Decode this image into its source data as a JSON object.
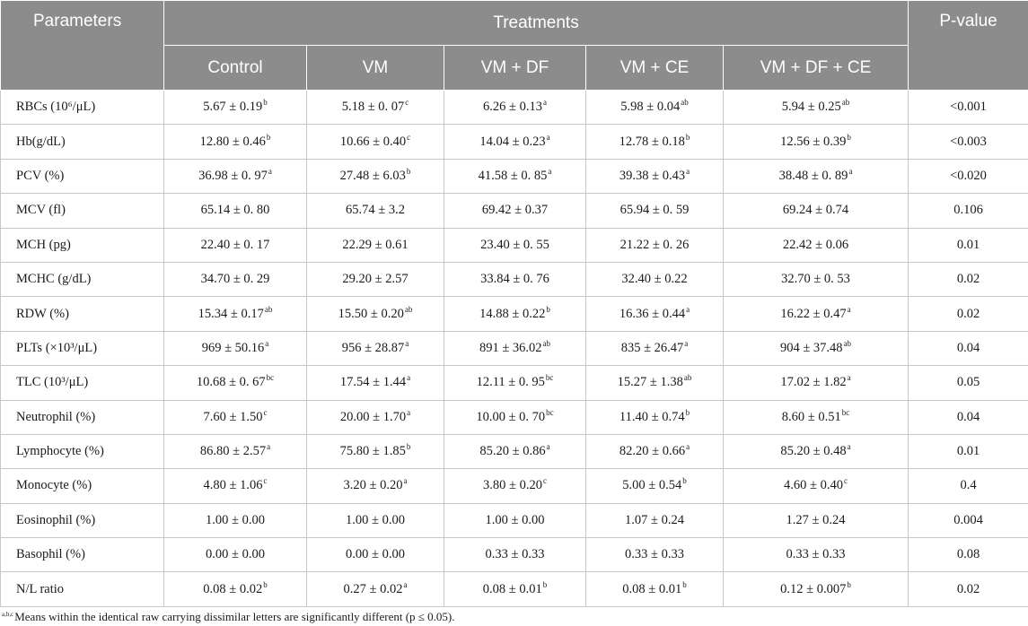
{
  "header": {
    "parameters": "Parameters",
    "treatments": "Treatments",
    "pvalue": "P-value",
    "groups": [
      "Control",
      "VM",
      "VM + DF",
      "VM + CE",
      "VM + DF + CE"
    ]
  },
  "rows": [
    {
      "p": "RBCs (10⁶/μL)",
      "c": [
        [
          "5.67 ± 0.19",
          "b"
        ],
        [
          "5.18 ± 0. 07",
          "c"
        ],
        [
          "6.26 ± 0.13",
          "a"
        ],
        [
          "5.98 ± 0.04",
          "ab"
        ],
        [
          "5.94 ± 0.25",
          "ab"
        ]
      ],
      "pv": "<0.001"
    },
    {
      "p": "Hb(g/dL)",
      "c": [
        [
          "12.80 ± 0.46",
          "b"
        ],
        [
          "10.66 ± 0.40",
          "c"
        ],
        [
          "14.04 ± 0.23",
          "a"
        ],
        [
          "12.78 ± 0.18",
          "b"
        ],
        [
          "12.56 ± 0.39",
          "b"
        ]
      ],
      "pv": "<0.003"
    },
    {
      "p": "PCV (%)",
      "c": [
        [
          "36.98 ± 0. 97",
          "a"
        ],
        [
          "27.48 ± 6.03",
          "b"
        ],
        [
          "41.58 ± 0. 85",
          "a"
        ],
        [
          "39.38 ± 0.43",
          "a"
        ],
        [
          "38.48 ± 0. 89",
          "a"
        ]
      ],
      "pv": "<0.020"
    },
    {
      "p": "MCV (fl)",
      "c": [
        [
          "65.14 ± 0. 80",
          ""
        ],
        [
          "65.74 ± 3.2",
          ""
        ],
        [
          "69.42 ± 0.37",
          ""
        ],
        [
          "65.94 ± 0. 59",
          ""
        ],
        [
          "69.24 ± 0.74",
          ""
        ]
      ],
      "pv": "0.106"
    },
    {
      "p": "MCH (pg)",
      "c": [
        [
          "22.40 ± 0. 17",
          ""
        ],
        [
          "22.29 ± 0.61",
          ""
        ],
        [
          "23.40 ± 0. 55",
          ""
        ],
        [
          "21.22 ± 0. 26",
          ""
        ],
        [
          "22.42 ± 0.06",
          ""
        ]
      ],
      "pv": "0.01"
    },
    {
      "p": "MCHC (g/dL)",
      "c": [
        [
          "34.70 ± 0. 29",
          ""
        ],
        [
          "29.20 ± 2.57",
          ""
        ],
        [
          "33.84 ± 0. 76",
          ""
        ],
        [
          "32.40 ± 0.22",
          ""
        ],
        [
          "32.70 ± 0. 53",
          ""
        ]
      ],
      "pv": "0.02"
    },
    {
      "p": "RDW (%)",
      "c": [
        [
          "15.34 ± 0.17",
          "ab"
        ],
        [
          "15.50 ± 0.20",
          "ab"
        ],
        [
          "14.88 ± 0.22",
          "b"
        ],
        [
          "16.36 ± 0.44",
          "a"
        ],
        [
          "16.22 ± 0.47",
          "a"
        ]
      ],
      "pv": "0.02"
    },
    {
      "p": "PLTs (×10³/μL)",
      "c": [
        [
          "969 ± 50.16",
          "a"
        ],
        [
          "956 ± 28.87",
          "a"
        ],
        [
          "891 ± 36.02",
          "ab"
        ],
        [
          "835 ± 26.47",
          "a"
        ],
        [
          "904 ± 37.48",
          "ab"
        ]
      ],
      "pv": "0.04"
    },
    {
      "p": "TLC (10³/μL)",
      "c": [
        [
          "10.68 ± 0. 67",
          "bc"
        ],
        [
          "17.54 ± 1.44",
          "a"
        ],
        [
          "12.11 ± 0. 95",
          "bc"
        ],
        [
          "15.27 ± 1.38",
          "ab"
        ],
        [
          "17.02 ± 1.82",
          "a"
        ]
      ],
      "pv": "0.05"
    },
    {
      "p": "Neutrophil (%)",
      "c": [
        [
          "7.60 ± 1.50",
          "c"
        ],
        [
          "20.00 ± 1.70",
          "a"
        ],
        [
          "10.00 ± 0. 70",
          "bc"
        ],
        [
          "11.40 ± 0.74",
          "b"
        ],
        [
          "8.60 ± 0.51",
          "bc"
        ]
      ],
      "pv": "0.04"
    },
    {
      "p": "Lymphocyte (%)",
      "c": [
        [
          "86.80 ± 2.57",
          "a"
        ],
        [
          "75.80 ± 1.85",
          "b"
        ],
        [
          "85.20 ± 0.86",
          "a"
        ],
        [
          "82.20 ± 0.66",
          "a"
        ],
        [
          "85.20 ± 0.48",
          "a"
        ]
      ],
      "pv": "0.01"
    },
    {
      "p": "Monocyte (%)",
      "c": [
        [
          "4.80 ± 1.06",
          "c"
        ],
        [
          "3.20 ± 0.20",
          "a"
        ],
        [
          "3.80 ± 0.20",
          "c"
        ],
        [
          "5.00 ± 0.54",
          "b"
        ],
        [
          "4.60 ± 0.40",
          "c"
        ]
      ],
      "pv": "0.4"
    },
    {
      "p": "Eosinophil (%)",
      "c": [
        [
          "1.00 ± 0.00",
          ""
        ],
        [
          "1.00 ± 0.00",
          ""
        ],
        [
          "1.00 ± 0.00",
          ""
        ],
        [
          "1.07 ± 0.24",
          ""
        ],
        [
          "1.27 ± 0.24",
          ""
        ]
      ],
      "pv": "0.004"
    },
    {
      "p": "Basophil (%)",
      "c": [
        [
          "0.00 ± 0.00",
          ""
        ],
        [
          "0.00 ± 0.00",
          ""
        ],
        [
          "0.33 ± 0.33",
          ""
        ],
        [
          "0.33 ± 0.33",
          ""
        ],
        [
          "0.33 ± 0.33",
          ""
        ]
      ],
      "pv": "0.08"
    },
    {
      "p": "N/L ratio",
      "c": [
        [
          "0.08 ± 0.02",
          "b"
        ],
        [
          "0.27 ± 0.02",
          "a"
        ],
        [
          "0.08 ± 0.01",
          "b"
        ],
        [
          "0.08 ± 0.01",
          "b"
        ],
        [
          "0.12 ± 0.007",
          "b"
        ]
      ],
      "pv": "0.02"
    }
  ],
  "footnote": {
    "marks": "a,b,c",
    "text": "Means within the identical raw carrying dissimilar letters are significantly different (p ≤ 0.05)."
  }
}
